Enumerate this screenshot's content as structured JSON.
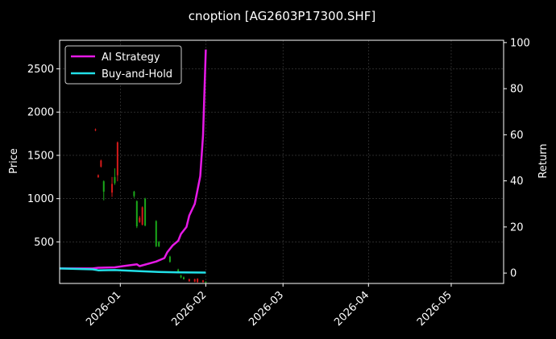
{
  "chart_data": {
    "type": "line",
    "title": "cnoption [AG2603P17300.SHF]",
    "ylabel": "Price",
    "y2label": "Return",
    "x_ticks": [
      "2026-01",
      "2026-02",
      "2026-03",
      "2026-04",
      "2026-05"
    ],
    "xlim": [
      "2025-12-10",
      "2026-05-20"
    ],
    "ylim": [
      20,
      2830
    ],
    "y_ticks": [
      500,
      1000,
      1500,
      2000,
      2500
    ],
    "y2lim": [
      -4.5,
      101
    ],
    "y2_ticks": [
      0,
      20,
      40,
      60,
      80,
      100
    ],
    "grid": true,
    "legend_position": "top-left",
    "colors": {
      "ai": "#e619e6",
      "bh": "#22e0e8",
      "up": "#1aa81a",
      "down": "#d41a1a",
      "axis": "#ffffff",
      "grid": "#444444"
    },
    "series": [
      {
        "name": "AI Strategy",
        "axis": "right",
        "x": [
          "2025-12-10",
          "2025-12-22",
          "2025-12-24",
          "2025-12-30",
          "2026-01-02",
          "2026-01-07",
          "2026-01-08",
          "2026-01-14",
          "2026-01-17",
          "2026-01-18",
          "2026-01-20",
          "2026-01-22",
          "2026-01-23",
          "2026-01-25",
          "2026-01-26",
          "2026-01-28",
          "2026-01-29",
          "2026-01-30",
          "2026-01-31",
          "2026-02-01"
        ],
        "values": [
          2.0,
          2.0,
          2.3,
          2.5,
          3.0,
          3.8,
          3.0,
          5.0,
          6.5,
          9.0,
          12.0,
          14.0,
          17.0,
          20.0,
          25.0,
          30.0,
          36.0,
          42.0,
          60.0,
          97.0
        ]
      },
      {
        "name": "Buy-and-Hold",
        "axis": "right",
        "x": [
          "2025-12-10",
          "2025-12-22",
          "2025-12-24",
          "2025-12-30",
          "2026-01-08",
          "2026-01-15",
          "2026-01-22",
          "2026-02-01"
        ],
        "values": [
          2.0,
          1.6,
          1.2,
          1.3,
          0.8,
          0.5,
          0.3,
          0.2
        ]
      }
    ],
    "candles": [
      {
        "date": "2025-12-23",
        "open": 1800,
        "close": 1790,
        "high": 1810,
        "low": 1780
      },
      {
        "date": "2025-12-24",
        "open": 1270,
        "close": 1250,
        "high": 1280,
        "low": 1240
      },
      {
        "date": "2025-12-25",
        "open": 1440,
        "close": 1370,
        "high": 1450,
        "low": 1360
      },
      {
        "date": "2025-12-26",
        "open": 1080,
        "close": 1200,
        "high": 1210,
        "low": 980
      },
      {
        "date": "2025-12-29",
        "open": 1170,
        "close": 1070,
        "high": 1250,
        "low": 1020
      },
      {
        "date": "2025-12-30",
        "open": 1180,
        "close": 1250,
        "high": 1350,
        "low": 1160
      },
      {
        "date": "2025-12-31",
        "open": 1650,
        "close": 1270,
        "high": 1660,
        "low": 1200
      },
      {
        "date": "2026-01-06",
        "open": 1030,
        "close": 1080,
        "high": 1090,
        "low": 1010
      },
      {
        "date": "2026-01-07",
        "open": 680,
        "close": 970,
        "high": 980,
        "low": 660
      },
      {
        "date": "2026-01-08",
        "open": 780,
        "close": 730,
        "high": 800,
        "low": 720
      },
      {
        "date": "2026-01-09",
        "open": 900,
        "close": 700,
        "high": 910,
        "low": 690
      },
      {
        "date": "2026-01-10",
        "open": 690,
        "close": 1000,
        "high": 1010,
        "low": 680
      },
      {
        "date": "2026-01-14",
        "open": 450,
        "close": 740,
        "high": 750,
        "low": 440
      },
      {
        "date": "2026-01-15",
        "open": 450,
        "close": 500,
        "high": 510,
        "low": 440
      },
      {
        "date": "2026-01-19",
        "open": 270,
        "close": 330,
        "high": 340,
        "low": 260
      },
      {
        "date": "2026-01-22",
        "open": 150,
        "close": 180,
        "high": 190,
        "low": 140
      },
      {
        "date": "2026-01-23",
        "open": 90,
        "close": 110,
        "high": 120,
        "low": 80
      },
      {
        "date": "2026-01-24",
        "open": 70,
        "close": 90,
        "high": 100,
        "low": 65
      },
      {
        "date": "2026-01-26",
        "open": 70,
        "close": 45,
        "high": 75,
        "low": 40
      },
      {
        "date": "2026-01-28",
        "open": 70,
        "close": 40,
        "high": 75,
        "low": 35
      },
      {
        "date": "2026-01-29",
        "open": 75,
        "close": 35,
        "high": 80,
        "low": 30
      },
      {
        "date": "2026-01-31",
        "open": 55,
        "close": 35,
        "high": 60,
        "low": 30
      },
      {
        "date": "2026-02-01",
        "open": 30,
        "close": 40,
        "high": 45,
        "low": 25
      }
    ]
  }
}
